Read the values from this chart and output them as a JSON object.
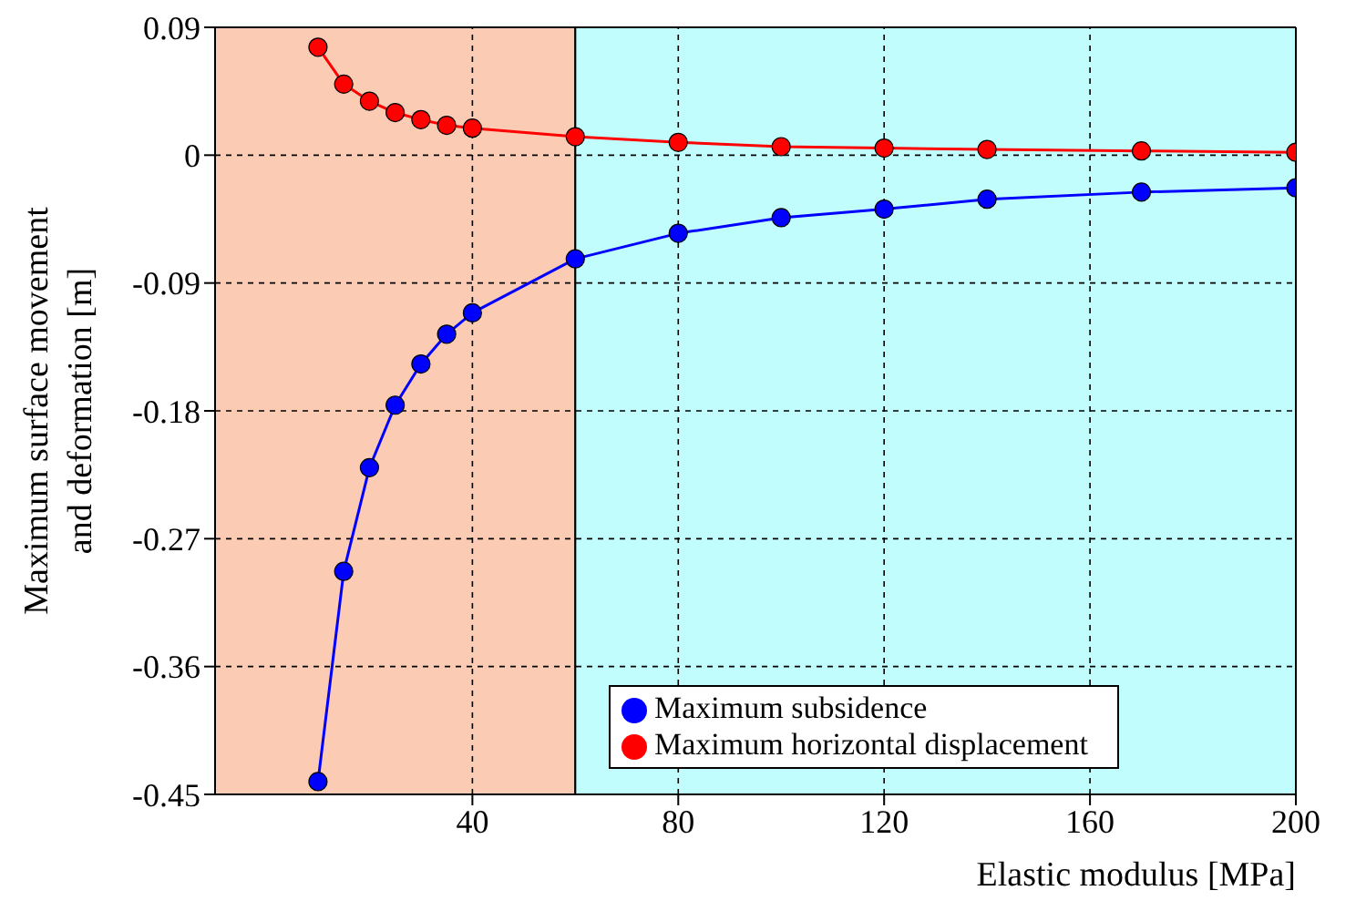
{
  "chart_data": {
    "type": "line",
    "xlabel": "Elastic modulus [MPa]",
    "ylabel": "Maximum surface movement and deformation [m]",
    "x": [
      10,
      15,
      20,
      25,
      30,
      35,
      40,
      60,
      80,
      100,
      120,
      140,
      170,
      200
    ],
    "series": [
      {
        "name": "Maximum subsidence",
        "color": "#0000ff",
        "values": [
          -0.441,
          -0.293,
          -0.22,
          -0.176,
          -0.147,
          -0.126,
          -0.111,
          -0.073,
          -0.055,
          -0.044,
          -0.038,
          -0.031,
          -0.026,
          -0.023
        ]
      },
      {
        "name": "Maximum horizontal displacement",
        "color": "#ff0000",
        "values": [
          0.076,
          0.05,
          0.038,
          0.03,
          0.025,
          0.021,
          0.019,
          0.013,
          0.009,
          0.006,
          0.005,
          0.004,
          0.003,
          0.002
        ]
      }
    ],
    "xlim": [
      -10,
      200
    ],
    "xticks": [
      40,
      80,
      120,
      160,
      200
    ],
    "ylim": [
      -0.45,
      0.09
    ],
    "yticks": [
      0.09,
      0,
      -0.09,
      -0.18,
      -0.27,
      -0.36,
      -0.45
    ],
    "bands": [
      {
        "axis": "x",
        "from": -10,
        "to": 60,
        "color": "#fbcbb4"
      },
      {
        "axis": "x",
        "from": 60,
        "to": 200,
        "color": "#c2fdfd"
      }
    ],
    "grid": true,
    "legend": "bottom right",
    "marker": "circle",
    "line_style": "solid"
  }
}
